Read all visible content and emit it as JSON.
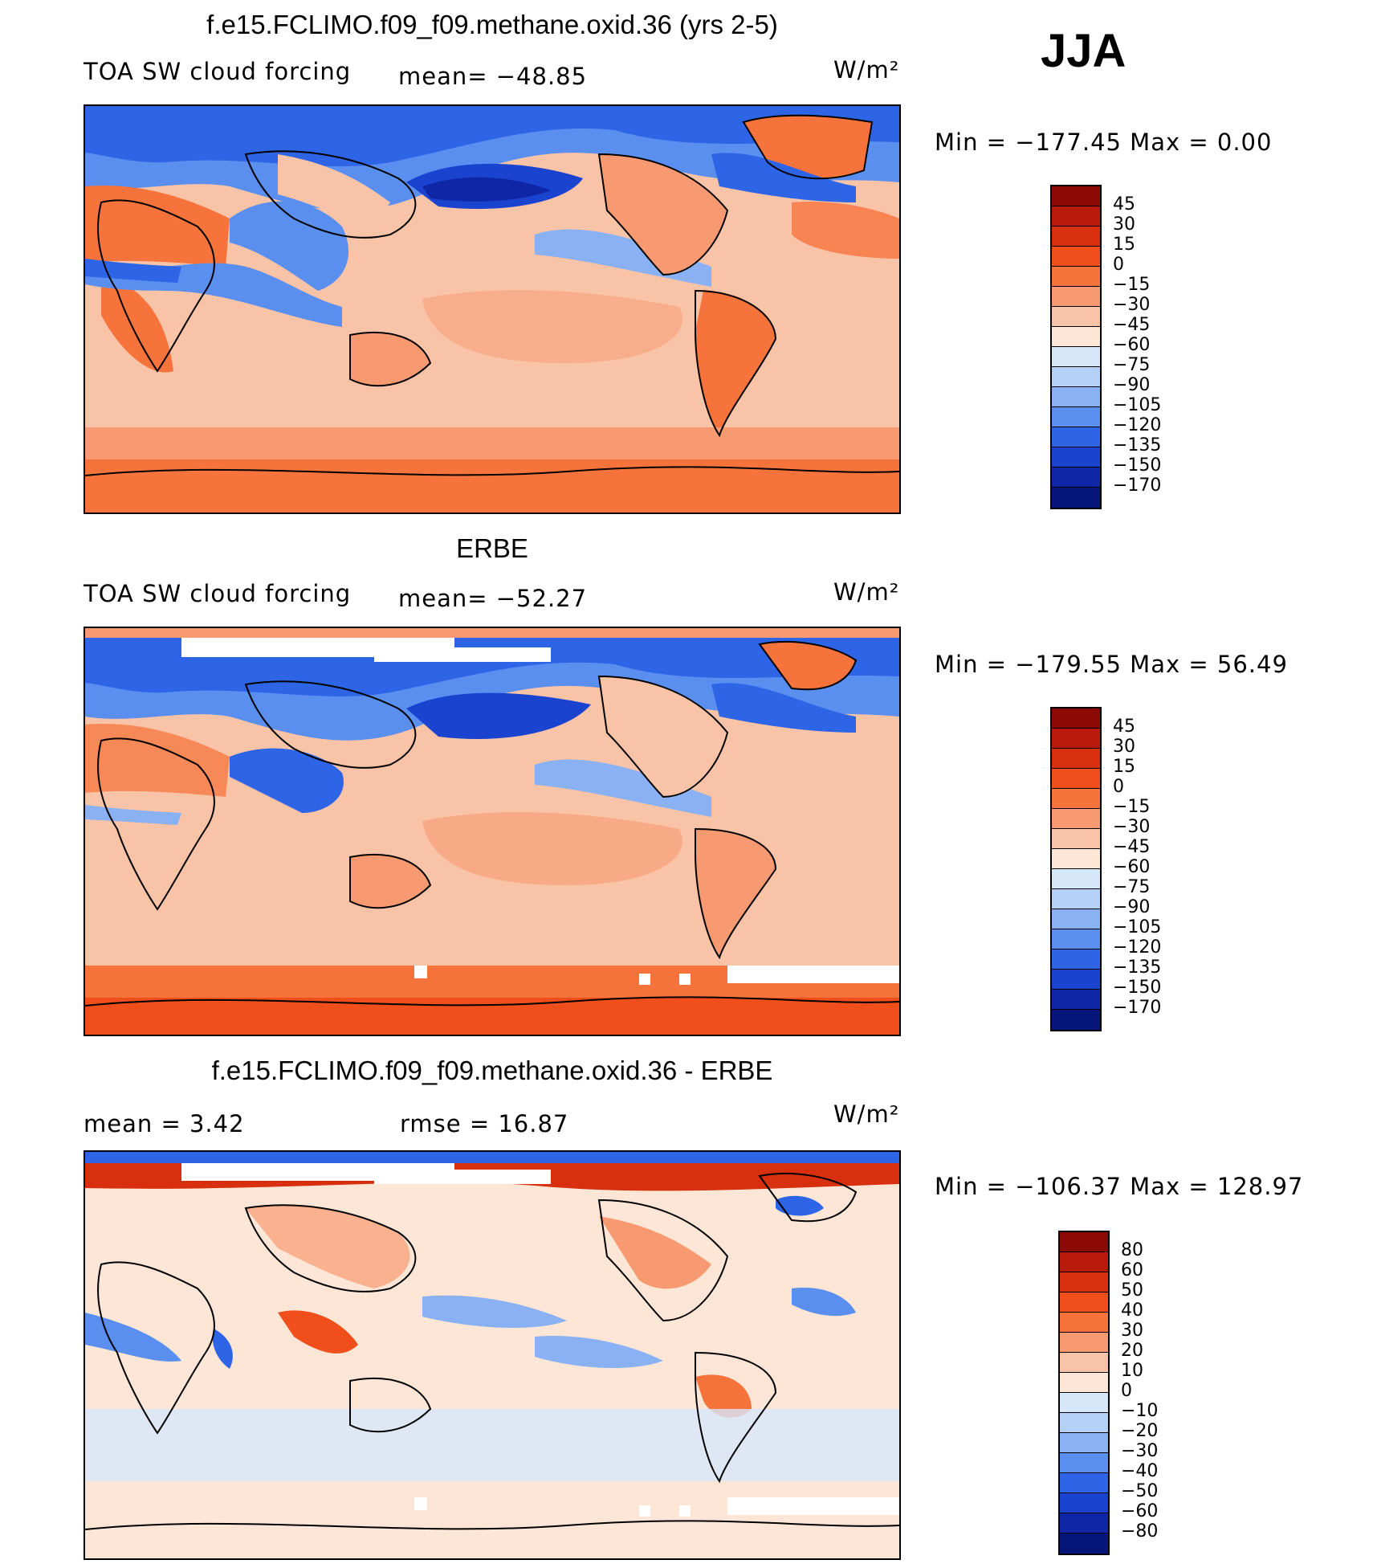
{
  "season": "JJA",
  "panels": [
    {
      "title": "f.e15.FCLIMO.f09_f09.methane.oxid.36 (yrs 2-5)",
      "left_label": "TOA SW cloud forcing",
      "mid_label": "mean= −48.85",
      "units": "W/m²",
      "minmax": "Min  =  −177.45  Max  =     0.00",
      "map_name": "model-cloud-forcing-map"
    },
    {
      "title": "ERBE",
      "left_label": "TOA SW cloud forcing",
      "mid_label": "mean= −52.27",
      "units": "W/m²",
      "minmax": "Min  =  −179.55  Max  =    56.49",
      "map_name": "erbe-cloud-forcing-map"
    },
    {
      "title": "f.e15.FCLIMO.f09_f09.methane.oxid.36 - ERBE",
      "left_label": "mean  =     3.42",
      "mid_label": "rmse  =    16.87",
      "units": "W/m²",
      "minmax": "Min  =  −106.37  Max  =  128.97",
      "map_name": "difference-map"
    }
  ],
  "colorbars": {
    "absolute": {
      "labels": [
        "45",
        "30",
        "15",
        "0",
        "−15",
        "−30",
        "−45",
        "−60",
        "−75",
        "−90",
        "−105",
        "−120",
        "−135",
        "−150",
        "−170"
      ],
      "colors": [
        "#8b0a05",
        "#b81a0c",
        "#d8300f",
        "#f04e1a",
        "#f6743c",
        "#f79a72",
        "#f9c3a8",
        "#fde6d6",
        "#d6e7fa",
        "#b6d1f8",
        "#8ab1f3",
        "#5a8ff0",
        "#2e64e6",
        "#1a44d0",
        "#0f26a6",
        "#05157a"
      ]
    },
    "difference": {
      "labels": [
        "80",
        "60",
        "50",
        "40",
        "30",
        "20",
        "10",
        "0",
        "−10",
        "−20",
        "−30",
        "−40",
        "−50",
        "−60",
        "−80"
      ],
      "colors": [
        "#8b0a05",
        "#b81a0c",
        "#d8300f",
        "#f04e1a",
        "#f6743c",
        "#f79a72",
        "#f9c3a8",
        "#fde6d6",
        "#d6e7fa",
        "#b6d1f8",
        "#8ab1f3",
        "#5a8ff0",
        "#2e64e6",
        "#1a44d0",
        "#0f26a6",
        "#05157a"
      ]
    }
  }
}
